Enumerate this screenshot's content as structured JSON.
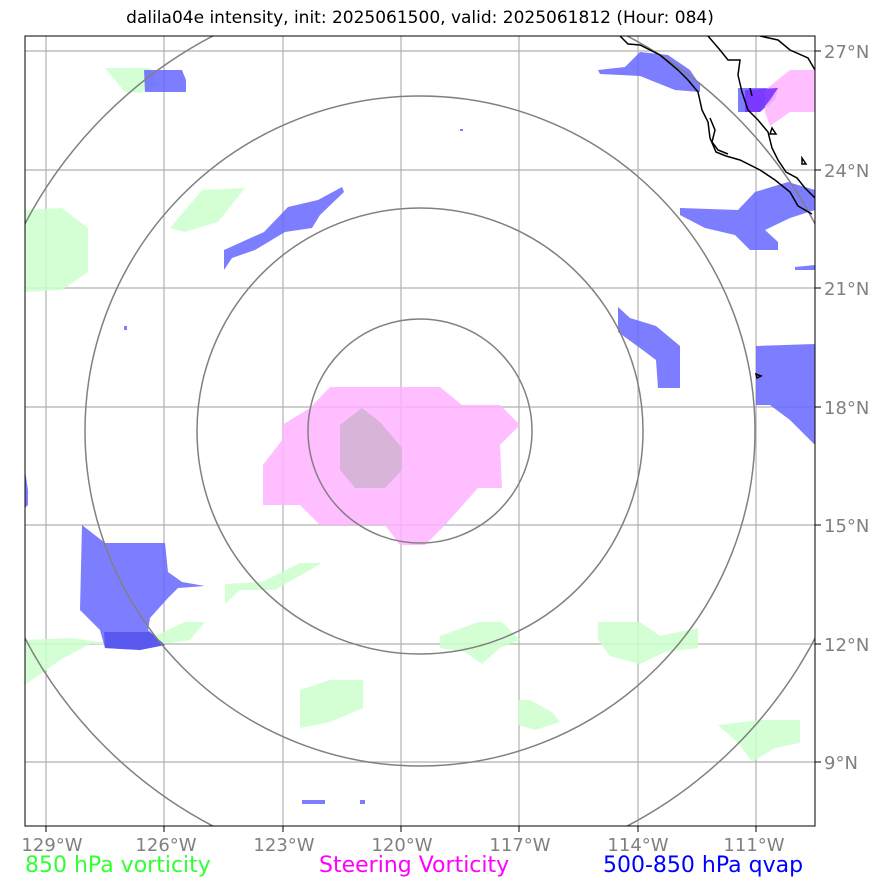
{
  "title": "dalila04e intensity, init: 2025061500, valid: 2025061812 (Hour: 084)",
  "axes": {
    "lon_labels": [
      "129°W",
      "126°W",
      "123°W",
      "120°W",
      "117°W",
      "114°W",
      "111°W"
    ],
    "lat_labels": [
      "27°N",
      "24°N",
      "21°N",
      "18°N",
      "15°N",
      "12°N",
      "9°N"
    ]
  },
  "legend": [
    {
      "label": "850 hPa vorticity",
      "color": "#33ff33"
    },
    {
      "label": "Steering Vorticity",
      "color": "#ff00ff"
    },
    {
      "label": "500-850 hPa qvap",
      "color": "#0000ff"
    }
  ],
  "colors": {
    "vort850_fill": "#ccffcc",
    "steering_fill": "#ffb3ff",
    "qvap_fill": "#6666ff",
    "range_rings": "#808080",
    "gridlines": "#b0b0b0",
    "coastline": "#000000"
  },
  "map": {
    "projection": "lat-lon",
    "lon_range": [
      -129.5,
      -109.5
    ],
    "lat_range": [
      7.5,
      27.3
    ],
    "storm_center": {
      "lon": -119.6,
      "lat": 17.5
    },
    "range_rings_count": 4
  }
}
